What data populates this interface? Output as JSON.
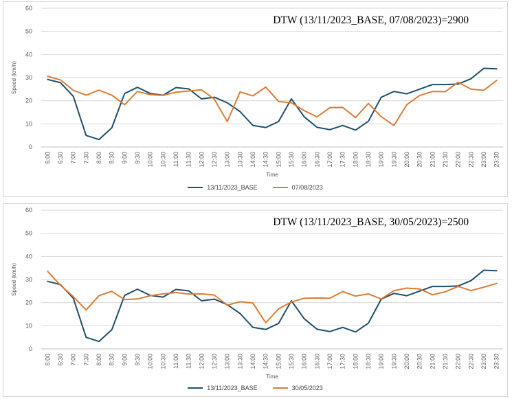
{
  "colors": {
    "base": "#1f4e6b",
    "compare": "#e07a32",
    "grid": "#d9d9d9",
    "tick": "#595959"
  },
  "chart_data": [
    {
      "type": "line",
      "title": "DTW (13/11/2023_BASE, 07/08/2023)=2900",
      "xlabel": "Time",
      "ylabel": "Speed (km/h)",
      "ylim": [
        0,
        60
      ],
      "yticks": [
        0,
        10,
        20,
        30,
        40,
        50,
        60
      ],
      "categories": [
        "6:00",
        "6:30",
        "7:00",
        "7:30",
        "8:00",
        "8:30",
        "9:00",
        "9:30",
        "10:00",
        "10:30",
        "11:00",
        "11:30",
        "12:00",
        "12:30",
        "13:00",
        "13:30",
        "14:00",
        "14:30",
        "15:00",
        "15:30",
        "16:00",
        "16:30",
        "17:00",
        "17:30",
        "18:00",
        "18:30",
        "19:00",
        "19:30",
        "20:00",
        "20:30",
        "21:00",
        "21:30",
        "22:00",
        "22:30",
        "23:00",
        "23:30"
      ],
      "series": [
        {
          "name": "13/11/2023_BASE",
          "color": "#1f4e6b",
          "values": [
            29.2,
            27.8,
            21.9,
            5.0,
            3.2,
            8.3,
            23.1,
            25.8,
            23.1,
            22.4,
            25.7,
            25.1,
            20.8,
            21.5,
            19.1,
            15.3,
            9.3,
            8.4,
            11.0,
            20.8,
            13.0,
            8.5,
            7.5,
            9.3,
            7.3,
            11.1,
            21.5,
            24.0,
            23.0,
            25.0,
            27.0,
            27.0,
            27.2,
            29.5,
            34.0,
            33.8
          ]
        },
        {
          "name": "07/08/2023",
          "color": "#e07a32",
          "values": [
            30.6,
            29.0,
            24.5,
            22.4,
            24.6,
            22.4,
            18.3,
            24.0,
            22.6,
            22.3,
            23.7,
            24.2,
            24.7,
            20.6,
            11.0,
            23.8,
            22.1,
            25.9,
            19.7,
            19.1,
            15.7,
            13.0,
            17.0,
            17.1,
            12.7,
            18.8,
            13.1,
            9.3,
            18.3,
            22.3,
            24.0,
            23.9,
            28.0,
            25.0,
            24.5,
            28.8
          ]
        }
      ]
    },
    {
      "type": "line",
      "title": "DTW (13/11/2023_BASE, 30/05/2023)=2500",
      "xlabel": "Time",
      "ylabel": "Speed (km/h)",
      "ylim": [
        0,
        60
      ],
      "yticks": [
        0,
        10,
        20,
        30,
        40,
        50,
        60
      ],
      "categories": [
        "6:00",
        "6:30",
        "7:00",
        "7:30",
        "8:00",
        "8:30",
        "9:00",
        "9:30",
        "10:00",
        "10:30",
        "11:00",
        "11:30",
        "12:00",
        "12:30",
        "13:00",
        "13:30",
        "14:00",
        "14:30",
        "15:00",
        "15:30",
        "16:00",
        "16:30",
        "17:00",
        "17:30",
        "18:00",
        "18:30",
        "19:00",
        "19:30",
        "20:00",
        "20:30",
        "21:00",
        "21:30",
        "22:00",
        "22:30",
        "23:00",
        "23:30"
      ],
      "series": [
        {
          "name": "13/11/2023_BASE",
          "color": "#1f4e6b",
          "values": [
            29.2,
            27.8,
            21.9,
            5.0,
            3.2,
            8.3,
            23.1,
            25.8,
            23.1,
            22.4,
            25.7,
            25.1,
            20.8,
            21.5,
            19.1,
            15.3,
            9.3,
            8.4,
            11.0,
            20.8,
            13.0,
            8.5,
            7.5,
            9.3,
            7.3,
            11.1,
            21.5,
            24.0,
            23.0,
            25.0,
            27.0,
            27.0,
            27.2,
            29.5,
            34.0,
            33.8
          ]
        },
        {
          "name": "30/05/2023",
          "color": "#e07a32",
          "values": [
            33.5,
            27.5,
            22.6,
            16.8,
            23.0,
            24.9,
            21.3,
            21.6,
            23.0,
            23.8,
            24.4,
            23.7,
            23.8,
            23.3,
            18.9,
            20.4,
            19.8,
            11.3,
            17.3,
            20.3,
            21.9,
            22.0,
            21.9,
            24.8,
            22.8,
            23.8,
            21.6,
            25.2,
            26.3,
            25.9,
            23.4,
            24.7,
            27.0,
            25.2,
            26.7,
            28.3
          ]
        }
      ]
    }
  ]
}
